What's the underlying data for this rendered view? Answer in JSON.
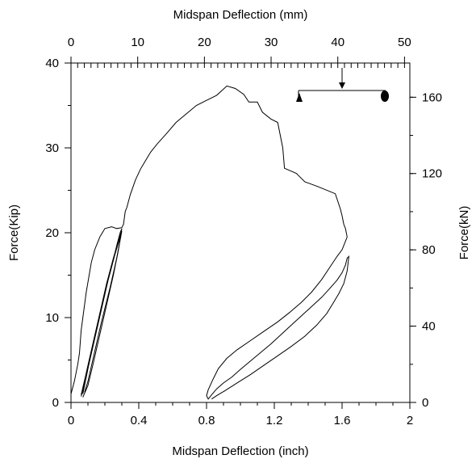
{
  "chart_data": {
    "type": "line",
    "title": "",
    "xlabel_bottom": "Midspan Deflection (inch)",
    "xlabel_top": "Midspan Deflection (mm)",
    "ylabel_left": "Force(Kip)",
    "ylabel_right": "Force(kN)",
    "xlim": [
      0,
      2
    ],
    "ylim": [
      0,
      40
    ],
    "x_ticks": [
      0,
      0.4,
      0.8,
      1.2,
      1.6,
      2
    ],
    "x_tick_labels": [
      "0",
      "0.4",
      "0.8",
      "1.2",
      "1.6",
      "2"
    ],
    "x_top_ticks": [
      0,
      10,
      20,
      30,
      40,
      50
    ],
    "x_top_tick_labels": [
      "0",
      "10",
      "20",
      "30",
      "40",
      "50"
    ],
    "y_ticks": [
      0,
      10,
      20,
      30,
      40
    ],
    "y_tick_labels": [
      "0",
      "10",
      "20",
      "30",
      "40"
    ],
    "y_right_ticks": [
      0,
      40,
      80,
      120,
      160
    ],
    "y_right_tick_labels": [
      "0",
      "40",
      "80",
      "120",
      "160"
    ],
    "grid": false,
    "series": [
      {
        "x": [
          0.0,
          0.02,
          0.03,
          0.04,
          0.05,
          0.06,
          0.07,
          0.08,
          0.09,
          0.12,
          0.14,
          0.17,
          0.2,
          0.24,
          0.27,
          0.3,
          0.31,
          0.32,
          0.33,
          0.35,
          0.38,
          0.41,
          0.44,
          0.47,
          0.51,
          0.56,
          0.62,
          0.68,
          0.74,
          0.8,
          0.86,
          0.92,
          0.97,
          1.02,
          1.05,
          1.1,
          1.13,
          1.18,
          1.22,
          1.25,
          1.26,
          1.33,
          1.38,
          1.45,
          1.56,
          1.59,
          1.6,
          1.61,
          1.62,
          1.63
        ],
        "y": [
          1.0,
          2.5,
          3.5,
          4.5,
          5.8,
          8.5,
          10.0,
          11.5,
          13.0,
          16.5,
          18.0,
          19.5,
          20.5,
          20.7,
          20.5,
          20.6,
          21.0,
          22.5,
          23.0,
          24.5,
          26.2,
          27.5,
          28.5,
          29.5,
          30.5,
          31.6,
          33.0,
          34.0,
          35.0,
          35.6,
          36.2,
          37.3,
          37.0,
          36.3,
          35.4,
          35.4,
          34.2,
          33.4,
          33.0,
          30.0,
          27.6,
          27.0,
          26.0,
          25.5,
          24.6,
          22.8,
          22.0,
          21.0,
          20.5,
          19.5
        ]
      },
      {
        "x": [
          0.06,
          0.09,
          0.12,
          0.16,
          0.2,
          0.24,
          0.27,
          0.29,
          0.3,
          0.28,
          0.25,
          0.21,
          0.17,
          0.13,
          0.1,
          0.07
        ],
        "y": [
          0.7,
          3.0,
          6.0,
          9.5,
          13.0,
          16.0,
          18.5,
          20.0,
          20.5,
          18.0,
          15.0,
          11.5,
          8.0,
          4.5,
          2.0,
          0.6
        ]
      },
      {
        "x": [
          0.07,
          0.1,
          0.14,
          0.18,
          0.22,
          0.26,
          0.29,
          0.3,
          0.27,
          0.23,
          0.18,
          0.14,
          0.1,
          0.08
        ],
        "y": [
          1.0,
          4.0,
          7.5,
          11.0,
          14.5,
          17.5,
          19.5,
          20.2,
          17.0,
          13.5,
          9.5,
          6.0,
          2.5,
          1.2
        ]
      },
      {
        "x": [
          0.06,
          0.09,
          0.13,
          0.17,
          0.21,
          0.25,
          0.28,
          0.295
        ],
        "y": [
          0.9,
          3.5,
          7.0,
          10.5,
          14.0,
          17.0,
          19.0,
          20.0
        ]
      },
      {
        "x": [
          1.63,
          1.6,
          1.57,
          1.53,
          1.48,
          1.42,
          1.36,
          1.29,
          1.22,
          1.14,
          1.06,
          0.98,
          0.92,
          0.87,
          0.84,
          0.81,
          0.8,
          0.81,
          0.83,
          0.86,
          0.9,
          0.95,
          1.0,
          1.06,
          1.12,
          1.18,
          1.24,
          1.3,
          1.36,
          1.42,
          1.48,
          1.53,
          1.57,
          1.6,
          1.62,
          1.63,
          1.64,
          1.63,
          1.61,
          1.58,
          1.55,
          1.51,
          1.45,
          1.38,
          1.3,
          1.22,
          1.14,
          1.06,
          0.98,
          0.91,
          0.86,
          0.83
        ],
        "y": [
          19.5,
          18.0,
          17.2,
          16.0,
          14.5,
          13.0,
          11.8,
          10.6,
          9.5,
          8.4,
          7.3,
          6.2,
          5.2,
          4.0,
          2.8,
          1.5,
          0.8,
          0.4,
          0.9,
          1.6,
          2.3,
          3.0,
          3.9,
          4.9,
          5.9,
          6.9,
          8.0,
          9.1,
          10.2,
          11.3,
          12.4,
          13.5,
          14.4,
          15.3,
          16.2,
          17.0,
          17.2,
          15.5,
          14.0,
          12.8,
          11.8,
          10.5,
          9.1,
          7.8,
          6.6,
          5.5,
          4.4,
          3.3,
          2.3,
          1.4,
          0.8,
          0.4
        ]
      }
    ]
  },
  "icons": {
    "beam_schematic": "simply-supported-beam-icon",
    "load_arrow": "down-arrow-icon",
    "pin_support": "triangle-support-icon",
    "roller_support": "roller-support-icon"
  }
}
